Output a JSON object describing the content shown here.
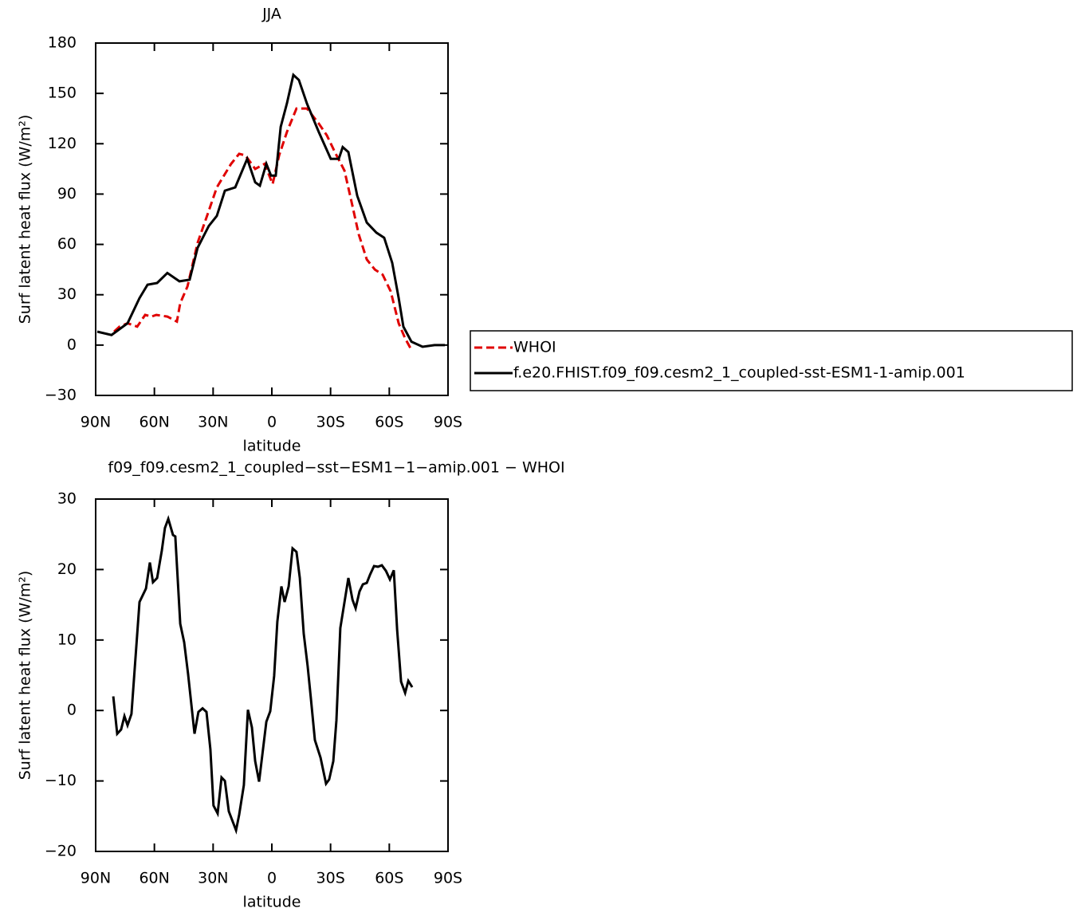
{
  "chart_data": [
    {
      "type": "line",
      "title": "JJA",
      "x_label": "latitude",
      "y_label": "Surf latent heat flux (W/m²)",
      "xlim": [
        90,
        -90
      ],
      "xticks": [
        {
          "value": 90,
          "label": "90N"
        },
        {
          "value": 60,
          "label": "60N"
        },
        {
          "value": 30,
          "label": "30N"
        },
        0,
        {
          "value": -30,
          "label": "30S"
        },
        {
          "value": -60,
          "label": "60S"
        },
        {
          "value": -90,
          "label": "90S"
        }
      ],
      "ylim": [
        -30,
        180
      ],
      "yticks": [
        {
          "value": -30,
          "label": "−30"
        },
        0,
        30,
        60,
        90,
        120,
        150,
        180
      ],
      "legend": "right",
      "series": [
        {
          "name": "WHOI",
          "color": "#e00000",
          "line_style": "dashed",
          "x": [
            80.6,
            77.8,
            73.7,
            68.8,
            64.7,
            61.5,
            59,
            53.4,
            48.5,
            46.8,
            43.1,
            37.9,
            32.2,
            28.1,
            20.8,
            16.7,
            13.5,
            8.5,
            3.7,
            -0.4,
            -3.7,
            -7.7,
            -12.6,
            -17.9,
            -24,
            -28.1,
            -32.2,
            -37.1,
            -40.4,
            -44.4,
            -48.5,
            -52.6,
            -56.6,
            -60.7,
            -64.8,
            -68.1,
            -70.9
          ],
          "values": [
            8,
            11,
            13,
            11,
            18,
            17,
            18,
            17,
            14,
            25,
            35,
            61,
            80,
            94,
            108,
            114,
            113,
            105,
            108,
            96,
            113,
            127,
            141,
            141,
            132,
            125,
            115,
            104,
            87,
            66,
            51,
            45,
            42,
            32,
            13,
            4,
            -2
          ]
        },
        {
          "name": "f.e20.FHIST.f09_f09.cesm2_1_coupled-sst-ESM1-1-amip.001",
          "color": "#000000",
          "line_style": "solid",
          "x": [
            89.2,
            81.9,
            73.7,
            67.6,
            63.5,
            58.6,
            53.4,
            47.2,
            42,
            37.9,
            32.2,
            28.1,
            24,
            18.7,
            12.6,
            8.5,
            6.1,
            2.8,
            0.4,
            -2,
            -4.5,
            -7.7,
            -11,
            -13.8,
            -17.9,
            -24,
            -30.1,
            -34.2,
            -36.2,
            -39.1,
            -43.6,
            -48.5,
            -53.4,
            -57.4,
            -61.5,
            -64.8,
            -67.2,
            -71.3,
            -77,
            -83.1,
            -88.4
          ],
          "values": [
            8,
            6,
            13,
            28,
            36,
            37,
            43,
            38,
            39,
            58,
            71,
            77,
            92,
            94,
            111,
            97,
            95,
            108,
            101,
            101,
            130,
            144,
            161,
            158,
            144,
            127,
            111,
            111,
            118,
            115,
            89,
            73,
            67,
            64,
            49,
            28,
            11,
            2,
            -1,
            0,
            0
          ]
        }
      ]
    },
    {
      "type": "line",
      "title": "f09_f09.cesm2_1_coupled−sst−ESM1−1−amip.001 − WHOI",
      "x_label": "latitude",
      "y_label": "Surf latent heat flux (W/m²)",
      "xlim": [
        90,
        -90
      ],
      "xticks": [
        {
          "value": 90,
          "label": "90N"
        },
        {
          "value": 60,
          "label": "60N"
        },
        {
          "value": 30,
          "label": "30N"
        },
        0,
        {
          "value": -30,
          "label": "30S"
        },
        {
          "value": -60,
          "label": "60S"
        },
        {
          "value": -90,
          "label": "90S"
        }
      ],
      "ylim": [
        -20,
        30
      ],
      "yticks": [
        {
          "value": -20,
          "label": "−20"
        },
        {
          "value": -10,
          "label": "−10"
        },
        0,
        10,
        20,
        30
      ],
      "series": [
        {
          "color": "#000000",
          "line_style": "solid",
          "x": [
            81,
            79,
            77,
            75.3,
            73.7,
            71.7,
            67.6,
            64.3,
            62.3,
            60.7,
            58.6,
            56.2,
            54.6,
            52.9,
            50.5,
            49.3,
            46.8,
            44.8,
            42.8,
            39.5,
            37.5,
            35.4,
            33.4,
            31.4,
            29.8,
            27.7,
            25.7,
            24,
            22,
            18.3,
            16.7,
            14.3,
            12.2,
            10.2,
            8.5,
            6.5,
            2.8,
            0.8,
            -1.2,
            -2.8,
            -4.9,
            -6.5,
            -8.6,
            -10.6,
            -12.6,
            -14.3,
            -16.3,
            -18.3,
            -19.9,
            -22,
            -24.9,
            -27.7,
            -29.3,
            -31.4,
            -33,
            -35,
            -39.1,
            -41.2,
            -42.8,
            -44.8,
            -46.5,
            -48.5,
            -50.2,
            -52.2,
            -54.2,
            -56.2,
            -58.3,
            -60.3,
            -62.3,
            -64,
            -66,
            -68.1,
            -69.7,
            -71.7
          ],
          "values": [
            2,
            -3.3,
            -2.7,
            -0.8,
            -2.1,
            -0.5,
            15.4,
            17.3,
            21,
            18.2,
            18.8,
            22.7,
            25.9,
            27.2,
            24.9,
            24.7,
            12.3,
            9.7,
            5.2,
            -3.3,
            -0.2,
            0.3,
            -0.2,
            -5.5,
            -13.5,
            -14.6,
            -9.5,
            -10,
            -14.3,
            -17,
            -14.8,
            -10.6,
            0.1,
            -2.4,
            -7.2,
            -10.1,
            -1.6,
            -0.1,
            4.9,
            12.6,
            17.6,
            15.4,
            17.6,
            23,
            22.5,
            18.8,
            10.9,
            6.3,
            1.8,
            -4.2,
            -6.7,
            -10.4,
            -9.8,
            -7.2,
            -1.4,
            11.7,
            18.8,
            15.7,
            14.5,
            16.9,
            17.9,
            18.1,
            19.3,
            20.5,
            20.4,
            20.6,
            19.8,
            18.6,
            19.9,
            11.4,
            4.1,
            2.5,
            4.2,
            3.3
          ]
        }
      ]
    }
  ]
}
